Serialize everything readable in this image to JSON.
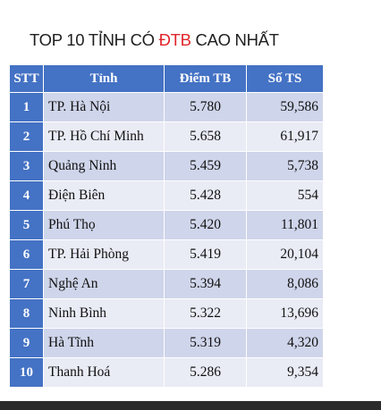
{
  "title": {
    "prefix": "TOP 10 TỈNH CÓ ",
    "highlight": "ĐTB",
    "suffix": " CAO NHẤT",
    "highlight_color": "#e0262b"
  },
  "colors": {
    "header_bg": "#4472c4",
    "row_odd": "#cfd5ea",
    "row_even": "#e9ebf5"
  },
  "table": {
    "headers": [
      "STT",
      "Tỉnh",
      "Điểm TB",
      "Số TS"
    ],
    "rows": [
      [
        "1",
        "TP. Hà Nội",
        "5.780",
        "59,586"
      ],
      [
        "2",
        "TP. Hồ Chí Minh",
        "5.658",
        "61,917"
      ],
      [
        "3",
        "Quảng Ninh",
        "5.459",
        "5,738"
      ],
      [
        "4",
        "Điện Biên",
        "5.428",
        "554"
      ],
      [
        "5",
        "Phú Thọ",
        "5.420",
        "11,801"
      ],
      [
        "6",
        "TP. Hải Phòng",
        "5.419",
        "20,104"
      ],
      [
        "7",
        "Nghệ An",
        "5.394",
        "8,086"
      ],
      [
        "8",
        "Ninh Bình",
        "5.322",
        "13,696"
      ],
      [
        "9",
        "Hà Tĩnh",
        "5.319",
        "4,320"
      ],
      [
        "10",
        "Thanh Hoá",
        "5.286",
        "9,354"
      ]
    ]
  }
}
